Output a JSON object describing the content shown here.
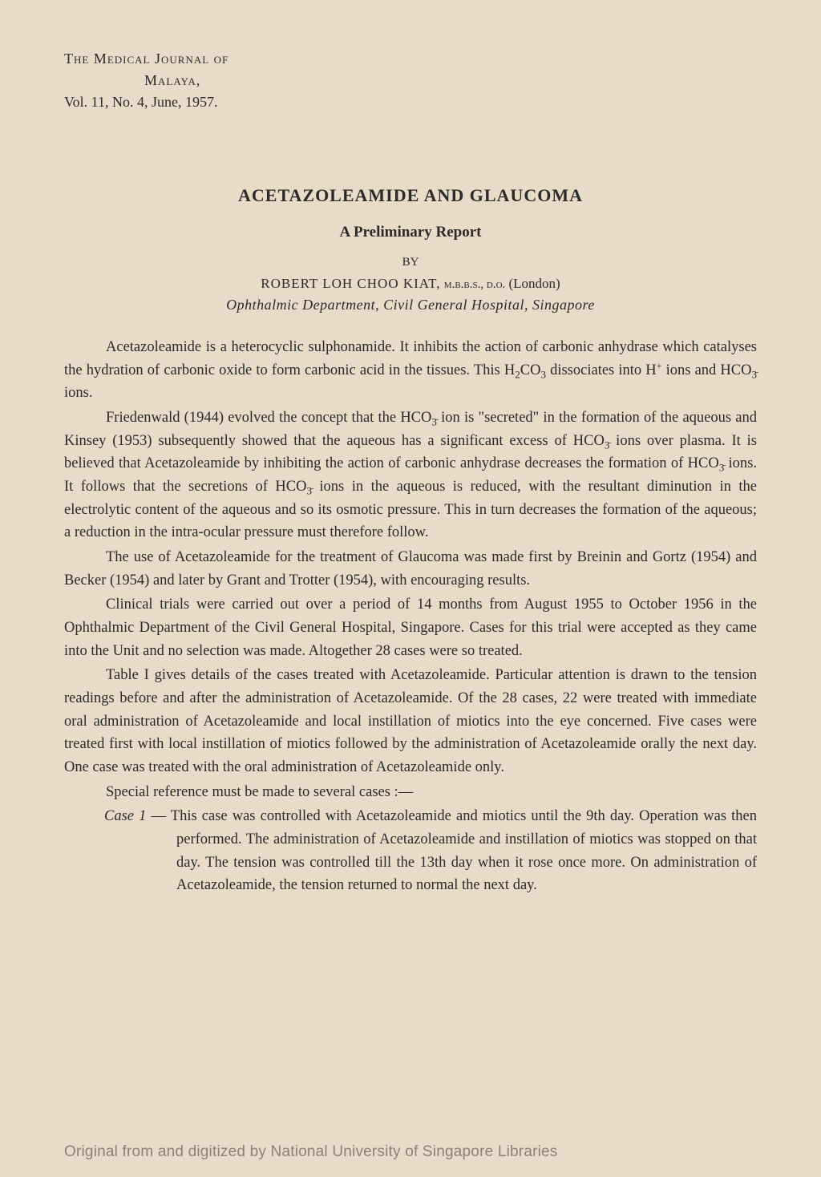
{
  "header": {
    "journal_line1": "The Medical Journal of",
    "journal_line2": "Malaya,",
    "volume": "Vol. 11, No. 4, June, 1957."
  },
  "article": {
    "title": "ACETAZOLEAMIDE AND GLAUCOMA",
    "subtitle": "A Preliminary Report",
    "by": "BY",
    "author": "ROBERT LOH CHOO KIAT,",
    "credentials": "m.b.b.s., d.o.",
    "credentials_suffix": "(London)",
    "affiliation": "Ophthalmic Department, Civil General Hospital, Singapore"
  },
  "paragraphs": {
    "p1_a": "Acetazoleamide is a heterocyclic sulphonamide. It inhibits the action of carbonic anhydrase which catalyses the hydration of carbonic oxide to form carbonic acid in the tissues. This H",
    "p1_b": "CO",
    "p1_c": " dissociates into H",
    "p1_d": " ions and HCO",
    "p1_e": " ions.",
    "p2_a": "Friedenwald (1944) evolved the concept that the HCO",
    "p2_b": " ion is \"secreted\" in the formation of the aqueous and Kinsey (1953) subsequently showed that the aqueous has a significant excess of HCO",
    "p2_c": " ions over plasma. It is believed that Acetazoleamide by inhibiting the action of carbonic anhydrase decreases the formation of HCO",
    "p2_d": " ions. It follows that the secretions of HCO",
    "p2_e": " ions in the aqueous is reduced, with the resultant diminution in the electrolytic content of the aqueous and so its osmotic pressure. This in turn decreases the formation of the aqueous; a reduction in the intra-ocular pressure must therefore follow.",
    "p3": "The use of Acetazoleamide for the treatment of Glaucoma was made first by Breinin and Gortz (1954) and Becker (1954) and later by Grant and Trotter (1954), with encouraging results.",
    "p4": "Clinical trials were carried out over a period of 14 months from August 1955 to October 1956 in the Ophthalmic Department of the Civil General Hospital, Singapore. Cases for this trial were accepted as they came into the Unit and no selection was made. Altogether 28 cases were so treated.",
    "p5": "Table I gives details of the cases treated with Acetazoleamide. Particular attention is drawn to the tension readings before and after the administration of Acetazoleamide. Of the 28 cases, 22 were treated with immediate oral administration of Acetazoleamide and local instillation of miotics into the eye concerned. Five cases were treated first with local instillation of miotics followed by the administration of Acetazoleamide orally the next day. One case was treated with the oral administration of Acetazoleamide only.",
    "p6": "Special reference must be made to several cases :—",
    "case1_label": "Case 1",
    "case1_text": " — This case was controlled with Acetazoleamide and miotics until the 9th day. Operation was then performed. The administration of Acetazoleamide and instillation of miotics was stopped on that day. The tension was controlled till the 13th day when it rose once more. On administration of Acetazoleamide, the tension returned to normal the next day."
  },
  "watermark": "Original from and digitized by National University of Singapore Libraries",
  "chem": {
    "sub2": "2",
    "sub3": "3",
    "supplus": "+",
    "neg3": "3̄"
  }
}
